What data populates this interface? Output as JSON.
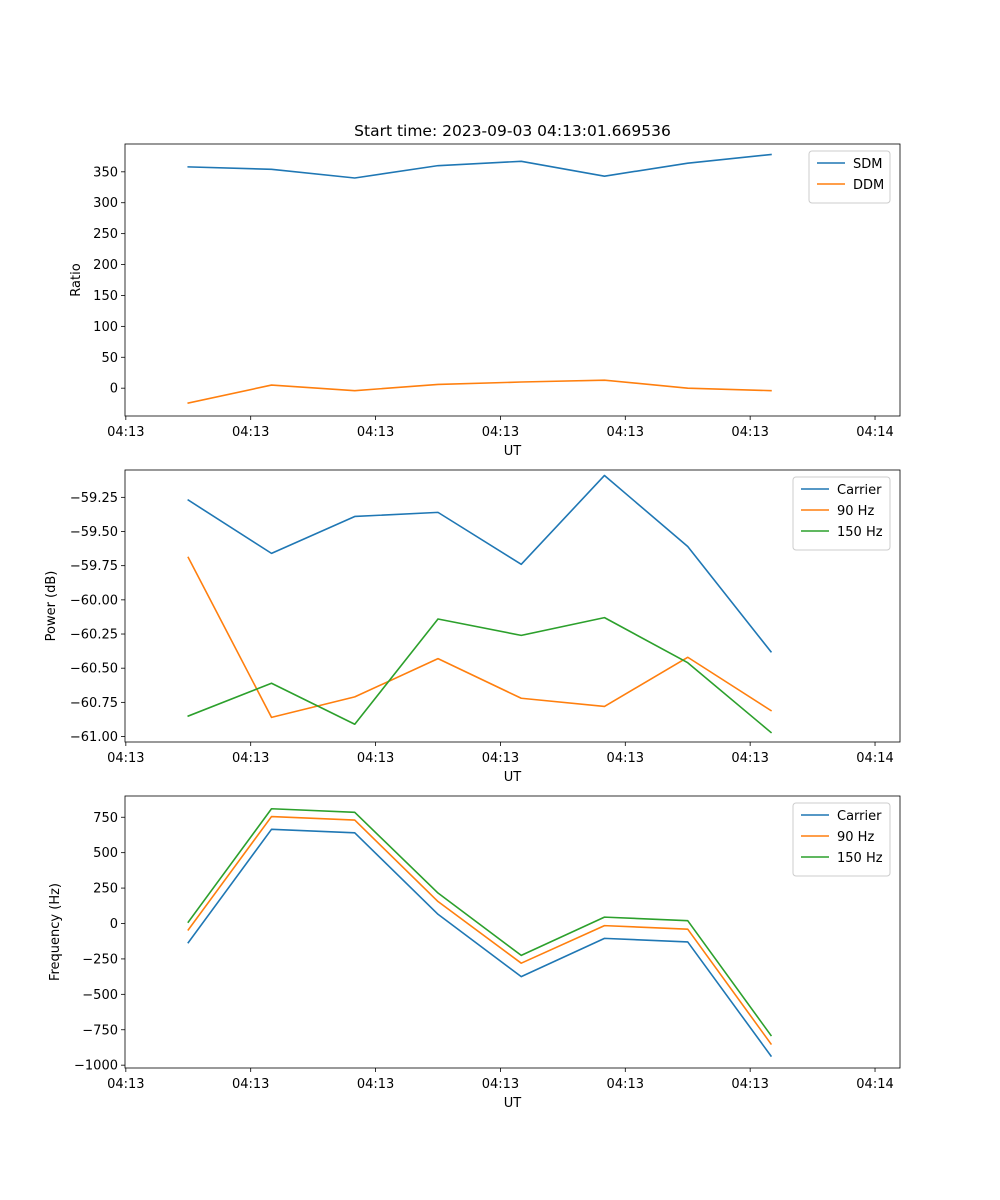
{
  "figure_title": "Start time: 2023-09-03 04:13:01.669536",
  "chart_data": [
    {
      "type": "line",
      "ylabel": "Ratio",
      "xlabel": "UT",
      "x": [
        0,
        1,
        2,
        3,
        4,
        5,
        6,
        7
      ],
      "xlim": [
        -0.76,
        8.55
      ],
      "xticks": [
        -0.75,
        0.75,
        2.25,
        3.75,
        5.25,
        6.75,
        8.25
      ],
      "xtick_labels": [
        "04:13",
        "04:13",
        "04:13",
        "04:13",
        "04:13",
        "04:13",
        "04:14"
      ],
      "ylim": [
        -45,
        395
      ],
      "yticks": [
        0,
        50,
        100,
        150,
        200,
        250,
        300,
        350
      ],
      "ytick_labels": [
        "0",
        "50",
        "100",
        "150",
        "200",
        "250",
        "300",
        "350"
      ],
      "legend_position": "top-right",
      "series": [
        {
          "name": "SDM",
          "color": "#1f77b4",
          "values": [
            358,
            354,
            340,
            360,
            367,
            343,
            364,
            378
          ]
        },
        {
          "name": "DDM",
          "color": "#ff7f0e",
          "values": [
            -24,
            5,
            -4,
            6,
            10,
            13,
            0,
            -4
          ]
        }
      ]
    },
    {
      "type": "line",
      "ylabel": "Power (dB)",
      "xlabel": "UT",
      "x": [
        0,
        1,
        2,
        3,
        4,
        5,
        6,
        7
      ],
      "xlim": [
        -0.76,
        8.55
      ],
      "xticks": [
        -0.75,
        0.75,
        2.25,
        3.75,
        5.25,
        6.75,
        8.25
      ],
      "xtick_labels": [
        "04:13",
        "04:13",
        "04:13",
        "04:13",
        "04:13",
        "04:13",
        "04:14"
      ],
      "ylim": [
        -61.04,
        -59.05
      ],
      "yticks": [
        -61.0,
        -60.75,
        -60.5,
        -60.25,
        -60.0,
        -59.75,
        -59.5,
        -59.25
      ],
      "ytick_labels": [
        "−61.00",
        "−60.75",
        "−60.50",
        "−60.25",
        "−60.00",
        "−59.75",
        "−59.50",
        "−59.25"
      ],
      "legend_position": "top-right",
      "series": [
        {
          "name": "Carrier",
          "color": "#1f77b4",
          "values": [
            -59.27,
            -59.66,
            -59.39,
            -59.36,
            -59.74,
            -59.09,
            -59.61,
            -60.38
          ]
        },
        {
          "name": "90 Hz",
          "color": "#ff7f0e",
          "values": [
            -59.69,
            -60.86,
            -60.71,
            -60.43,
            -60.72,
            -60.78,
            -60.42,
            -60.81
          ]
        },
        {
          "name": "150 Hz",
          "color": "#2ca02c",
          "values": [
            -60.85,
            -60.61,
            -60.91,
            -60.14,
            -60.26,
            -60.13,
            -60.46,
            -60.97
          ]
        }
      ]
    },
    {
      "type": "line",
      "ylabel": "Frequency (Hz)",
      "xlabel": "UT",
      "x": [
        0,
        1,
        2,
        3,
        4,
        5,
        6,
        7
      ],
      "xlim": [
        -0.76,
        8.55
      ],
      "xticks": [
        -0.75,
        0.75,
        2.25,
        3.75,
        5.25,
        6.75,
        8.25
      ],
      "xtick_labels": [
        "04:13",
        "04:13",
        "04:13",
        "04:13",
        "04:13",
        "04:13",
        "04:14"
      ],
      "ylim": [
        -1020,
        900
      ],
      "yticks": [
        -1000,
        -750,
        -500,
        -250,
        0,
        250,
        500,
        750
      ],
      "ytick_labels": [
        "−1000",
        "−750",
        "−500",
        "−250",
        "0",
        "250",
        "500",
        "750"
      ],
      "legend_position": "top-right",
      "series": [
        {
          "name": "Carrier",
          "color": "#1f77b4",
          "values": [
            -135,
            665,
            640,
            65,
            -375,
            -105,
            -130,
            -935
          ]
        },
        {
          "name": "90 Hz",
          "color": "#ff7f0e",
          "values": [
            -45,
            755,
            730,
            155,
            -280,
            -15,
            -40,
            -850
          ]
        },
        {
          "name": "150 Hz",
          "color": "#2ca02c",
          "values": [
            10,
            810,
            785,
            215,
            -225,
            45,
            20,
            -790
          ]
        }
      ]
    }
  ]
}
